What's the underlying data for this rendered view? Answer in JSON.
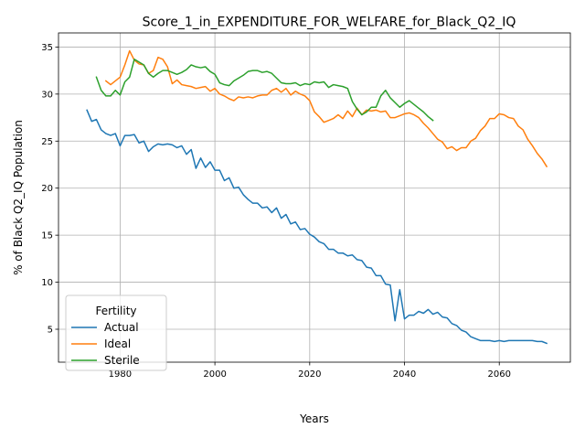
{
  "chart_data": {
    "type": "line",
    "title": "Score_1_in_EXPENDITURE_FOR_WELFARE_for_Black_Q2_IQ",
    "xlabel": "Years",
    "ylabel": "% of Black Q2_IQ Population",
    "xlim": [
      1967,
      2075
    ],
    "ylim": [
      1.5,
      36.5
    ],
    "xticks": [
      1980,
      2000,
      2020,
      2040,
      2060
    ],
    "yticks": [
      5,
      10,
      15,
      20,
      25,
      30,
      35
    ],
    "grid": true,
    "legend_title": "Fertility",
    "legend_position": "lower-left",
    "series": [
      {
        "name": "Actual",
        "color": "#1f77b4",
        "x": [
          1973,
          1974,
          1975,
          1976,
          1977,
          1978,
          1979,
          1980,
          1981,
          1982,
          1983,
          1984,
          1985,
          1986,
          1987,
          1988,
          1989,
          1990,
          1991,
          1992,
          1993,
          1994,
          1995,
          1996,
          1997,
          1998,
          1999,
          2000,
          2001,
          2002,
          2003,
          2004,
          2005,
          2006,
          2007,
          2008,
          2009,
          2010,
          2011,
          2012,
          2013,
          2014,
          2015,
          2016,
          2017,
          2018,
          2019,
          2020,
          2021,
          2022,
          2023,
          2024,
          2025,
          2026,
          2027,
          2028,
          2029,
          2030,
          2031,
          2032,
          2033,
          2034,
          2035,
          2036,
          2037,
          2038,
          2039,
          2040,
          2041,
          2042,
          2043,
          2044,
          2045,
          2046,
          2047,
          2048,
          2049,
          2050,
          2051,
          2052,
          2053,
          2054,
          2055,
          2056,
          2057,
          2058,
          2059,
          2060,
          2061,
          2062,
          2063,
          2064,
          2065,
          2066,
          2067,
          2068,
          2069,
          2070
        ],
        "values": [
          28.3,
          27.1,
          27.3,
          26.2,
          25.8,
          25.6,
          25.8,
          24.5,
          25.6,
          25.6,
          25.7,
          24.8,
          25.0,
          23.9,
          24.4,
          24.7,
          24.6,
          24.7,
          24.6,
          24.3,
          24.5,
          23.6,
          24.1,
          22.1,
          23.2,
          22.2,
          22.8,
          21.9,
          21.9,
          20.8,
          21.1,
          20.0,
          20.1,
          19.3,
          18.8,
          18.4,
          18.4,
          17.9,
          18.0,
          17.4,
          17.9,
          16.8,
          17.2,
          16.2,
          16.4,
          15.6,
          15.7,
          15.1,
          14.8,
          14.3,
          14.1,
          13.5,
          13.5,
          13.1,
          13.1,
          12.8,
          12.9,
          12.4,
          12.3,
          11.6,
          11.5,
          10.7,
          10.7,
          9.8,
          9.7,
          5.9,
          9.2,
          6.1,
          6.5,
          6.5,
          6.9,
          6.7,
          7.1,
          6.6,
          6.8,
          6.3,
          6.2,
          5.6,
          5.4,
          4.9,
          4.7,
          4.2,
          4.0,
          3.8,
          3.8,
          3.8,
          3.7,
          3.8,
          3.7,
          3.8,
          3.8,
          3.8,
          3.8,
          3.8,
          3.8,
          3.7,
          3.7,
          3.5
        ]
      },
      {
        "name": "Ideal",
        "color": "#ff7f0e",
        "x": [
          1977,
          1978,
          1979,
          1980,
          1981,
          1982,
          1983,
          1984,
          1985,
          1986,
          1987,
          1988,
          1989,
          1990,
          1991,
          1992,
          1993,
          1994,
          1995,
          1996,
          1997,
          1998,
          1999,
          2000,
          2001,
          2002,
          2003,
          2004,
          2005,
          2006,
          2007,
          2008,
          2009,
          2010,
          2011,
          2012,
          2013,
          2014,
          2015,
          2016,
          2017,
          2018,
          2019,
          2020,
          2021,
          2022,
          2023,
          2024,
          2025,
          2026,
          2027,
          2028,
          2029,
          2030,
          2031,
          2032,
          2033,
          2034,
          2035,
          2036,
          2037,
          2038,
          2039,
          2040,
          2041,
          2042,
          2043,
          2044,
          2045,
          2046,
          2047,
          2048,
          2049,
          2050,
          2051,
          2052,
          2053,
          2054,
          2055,
          2056,
          2057,
          2058,
          2059,
          2060,
          2061,
          2062,
          2063,
          2064,
          2065,
          2066,
          2067,
          2068,
          2069,
          2070
        ],
        "values": [
          31.4,
          31.0,
          31.4,
          31.8,
          33.1,
          34.6,
          33.6,
          33.2,
          33.1,
          32.2,
          32.5,
          33.9,
          33.7,
          32.9,
          31.1,
          31.5,
          31.0,
          30.9,
          30.8,
          30.6,
          30.7,
          30.8,
          30.3,
          30.6,
          30.0,
          29.8,
          29.5,
          29.3,
          29.7,
          29.6,
          29.7,
          29.6,
          29.8,
          29.9,
          29.9,
          30.4,
          30.6,
          30.2,
          30.6,
          29.9,
          30.3,
          30.0,
          29.8,
          29.3,
          28.1,
          27.6,
          27.0,
          27.2,
          27.4,
          27.8,
          27.4,
          28.2,
          27.6,
          28.5,
          27.8,
          28.3,
          28.2,
          28.3,
          28.1,
          28.2,
          27.5,
          27.5,
          27.7,
          27.9,
          28.0,
          27.8,
          27.5,
          26.9,
          26.4,
          25.8,
          25.2,
          24.9,
          24.2,
          24.4,
          24.0,
          24.3,
          24.3,
          25.0,
          25.3,
          26.1,
          26.6,
          27.4,
          27.4,
          27.9,
          27.8,
          27.5,
          27.4,
          26.6,
          26.2,
          25.2,
          24.5,
          23.7,
          23.1,
          22.3
        ]
      },
      {
        "name": "Sterile",
        "color": "#2ca02c",
        "x": [
          1975,
          1976,
          1977,
          1978,
          1979,
          1980,
          1981,
          1982,
          1983,
          1984,
          1985,
          1986,
          1987,
          1988,
          1989,
          1990,
          1991,
          1992,
          1993,
          1994,
          1995,
          1996,
          1997,
          1998,
          1999,
          2000,
          2001,
          2002,
          2003,
          2004,
          2005,
          2006,
          2007,
          2008,
          2009,
          2010,
          2011,
          2012,
          2013,
          2014,
          2015,
          2016,
          2017,
          2018,
          2019,
          2020,
          2021,
          2022,
          2023,
          2024,
          2025,
          2026,
          2027,
          2028,
          2029,
          2030,
          2031,
          2032,
          2033,
          2034,
          2035,
          2036,
          2037,
          2038,
          2039,
          2040,
          2041,
          2042,
          2043,
          2044,
          2045,
          2046
        ],
        "values": [
          31.8,
          30.4,
          29.8,
          29.8,
          30.4,
          29.9,
          31.3,
          31.8,
          33.7,
          33.4,
          33.1,
          32.2,
          31.8,
          32.2,
          32.5,
          32.5,
          32.3,
          32.1,
          32.3,
          32.6,
          33.1,
          32.9,
          32.8,
          32.9,
          32.4,
          32.1,
          31.2,
          31.0,
          30.9,
          31.4,
          31.7,
          32.0,
          32.4,
          32.5,
          32.5,
          32.3,
          32.4,
          32.2,
          31.7,
          31.2,
          31.1,
          31.1,
          31.2,
          30.9,
          31.1,
          31.0,
          31.3,
          31.2,
          31.3,
          30.7,
          31.0,
          30.9,
          30.8,
          30.6,
          29.2,
          28.4,
          27.8,
          28.1,
          28.6,
          28.6,
          29.8,
          30.4,
          29.6,
          29.1,
          28.6,
          29.0,
          29.3,
          28.9,
          28.5,
          28.1,
          27.6,
          27.2
        ]
      }
    ]
  }
}
